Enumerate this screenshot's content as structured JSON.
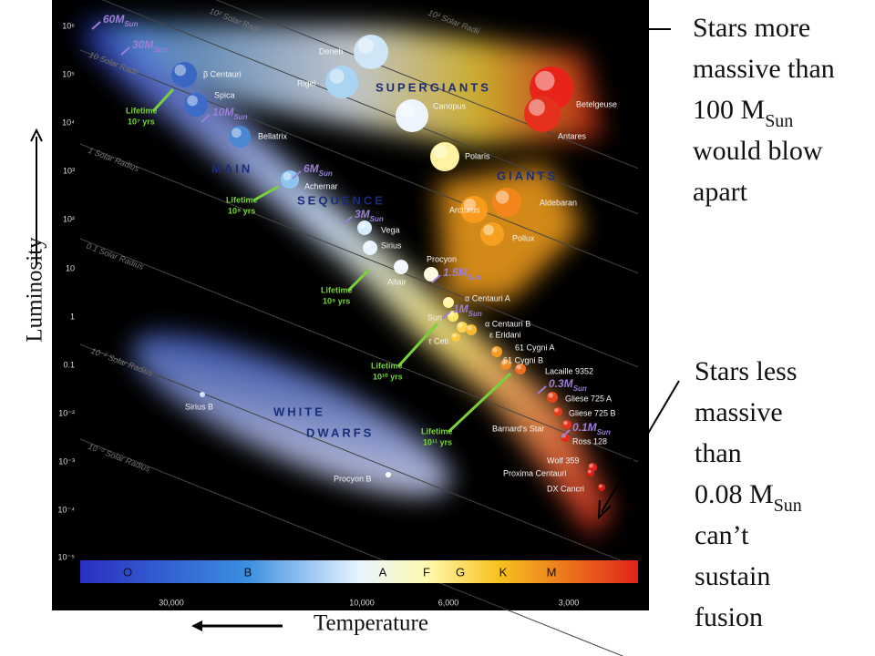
{
  "luminosity_axis": {
    "label": "Luminosity",
    "ticks": [
      "10⁶",
      "10⁵",
      "10⁴",
      "10³",
      "10²",
      "10",
      "1",
      "0.1",
      "10⁻²",
      "10⁻³",
      "10⁻⁴",
      "10⁻⁵"
    ]
  },
  "temperature_axis": {
    "label": "Temperature",
    "ticks": [
      "30,000",
      "10,000",
      "6,000",
      "3,000"
    ]
  },
  "spectral_classes": [
    "O",
    "B",
    "A",
    "F",
    "G",
    "K",
    "M"
  ],
  "regions": [
    "SUPERGIANTS",
    "GIANTS",
    "MAIN",
    "SEQUENCE",
    "WHITE",
    "DWARFS"
  ],
  "radius_lines": [
    "10³ Solar Radii",
    "10² Solar Radii",
    "10 Solar Radii",
    "1 Solar Radius",
    "0.1 Solar Radius",
    "10⁻² Solar Radius",
    "10⁻³ Solar Radius"
  ],
  "stars": [
    "Deneb",
    "Rigel",
    "β Centauri",
    "Spica",
    "Bellatrix",
    "Achernar",
    "Vega",
    "Sirius",
    "Altair",
    "Procyon",
    "Canopus",
    "Polaris",
    "Betelgeuse",
    "Antares",
    "Arcturus",
    "Aldebaran",
    "Pollux",
    "α Centauri A",
    "Sun",
    "α Centauri B",
    "ε Eridani",
    "τ Ceti",
    "61 Cygni A",
    "61 Cygni B",
    "Lacaille 9352",
    "Gliese 725 A",
    "Gliese 725 B",
    "Barnard's Star",
    "Ross 128",
    "Wolf 359",
    "Proxima Centauri",
    "DX Cancri",
    "Sirius B",
    "Procyon B"
  ],
  "masses": [
    {
      "text": "60M",
      "sub": "Sun"
    },
    {
      "text": "30M",
      "sub": "Sun"
    },
    {
      "text": "10M",
      "sub": "Sun"
    },
    {
      "text": "6M",
      "sub": "Sun"
    },
    {
      "text": "3M",
      "sub": "Sun"
    },
    {
      "text": "1.5M",
      "sub": "Sun"
    },
    {
      "text": "1M",
      "sub": "Sun"
    },
    {
      "text": "0.3M",
      "sub": "Sun"
    },
    {
      "text": "0.1M",
      "sub": "Sun"
    }
  ],
  "lifetimes": [
    {
      "title": "Lifetime",
      "span": "10⁷ yrs"
    },
    {
      "title": "Lifetime",
      "span": "10⁸ yrs"
    },
    {
      "title": "Lifetime",
      "span": "10⁹ yrs"
    },
    {
      "title": "Lifetime",
      "span": "10¹⁰ yrs"
    },
    {
      "title": "Lifetime",
      "span": "10¹¹ yrs"
    }
  ],
  "annotations": [
    {
      "lines": [
        "Stars more",
        "massive than",
        {
          "text": "100 M",
          "sub": "Sun"
        },
        "would blow",
        "apart"
      ]
    },
    {
      "lines": [
        "Stars less",
        "massive",
        "than",
        {
          "text": "0.08 M",
          "sub": "Sun"
        },
        "can’t",
        "sustain",
        "fusion"
      ]
    }
  ]
}
